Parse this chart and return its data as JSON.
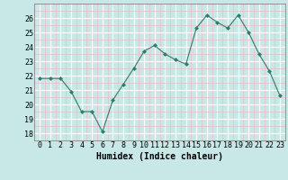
{
  "x": [
    0,
    1,
    2,
    3,
    4,
    5,
    6,
    7,
    8,
    9,
    10,
    11,
    12,
    13,
    14,
    15,
    16,
    17,
    18,
    19,
    20,
    21,
    22,
    23
  ],
  "y": [
    21.8,
    21.8,
    21.8,
    20.9,
    19.5,
    19.5,
    18.1,
    20.3,
    21.4,
    22.5,
    23.7,
    24.1,
    23.5,
    23.1,
    22.8,
    25.3,
    26.2,
    25.7,
    25.3,
    26.2,
    25.0,
    23.5,
    22.3,
    20.6
  ],
  "line_color": "#2e7d6e",
  "marker": "D",
  "marker_size": 2,
  "bg_color": "#c8e8e8",
  "grid_major_color": "#ffffff",
  "grid_minor_color": "#e8c0c0",
  "xlabel": "Humidex (Indice chaleur)",
  "ylim": [
    17.5,
    27.0
  ],
  "xlim": [
    -0.5,
    23.5
  ],
  "yticks": [
    18,
    19,
    20,
    21,
    22,
    23,
    24,
    25,
    26
  ],
  "xticks": [
    0,
    1,
    2,
    3,
    4,
    5,
    6,
    7,
    8,
    9,
    10,
    11,
    12,
    13,
    14,
    15,
    16,
    17,
    18,
    19,
    20,
    21,
    22,
    23
  ],
  "tick_fontsize": 6,
  "label_fontsize": 7
}
